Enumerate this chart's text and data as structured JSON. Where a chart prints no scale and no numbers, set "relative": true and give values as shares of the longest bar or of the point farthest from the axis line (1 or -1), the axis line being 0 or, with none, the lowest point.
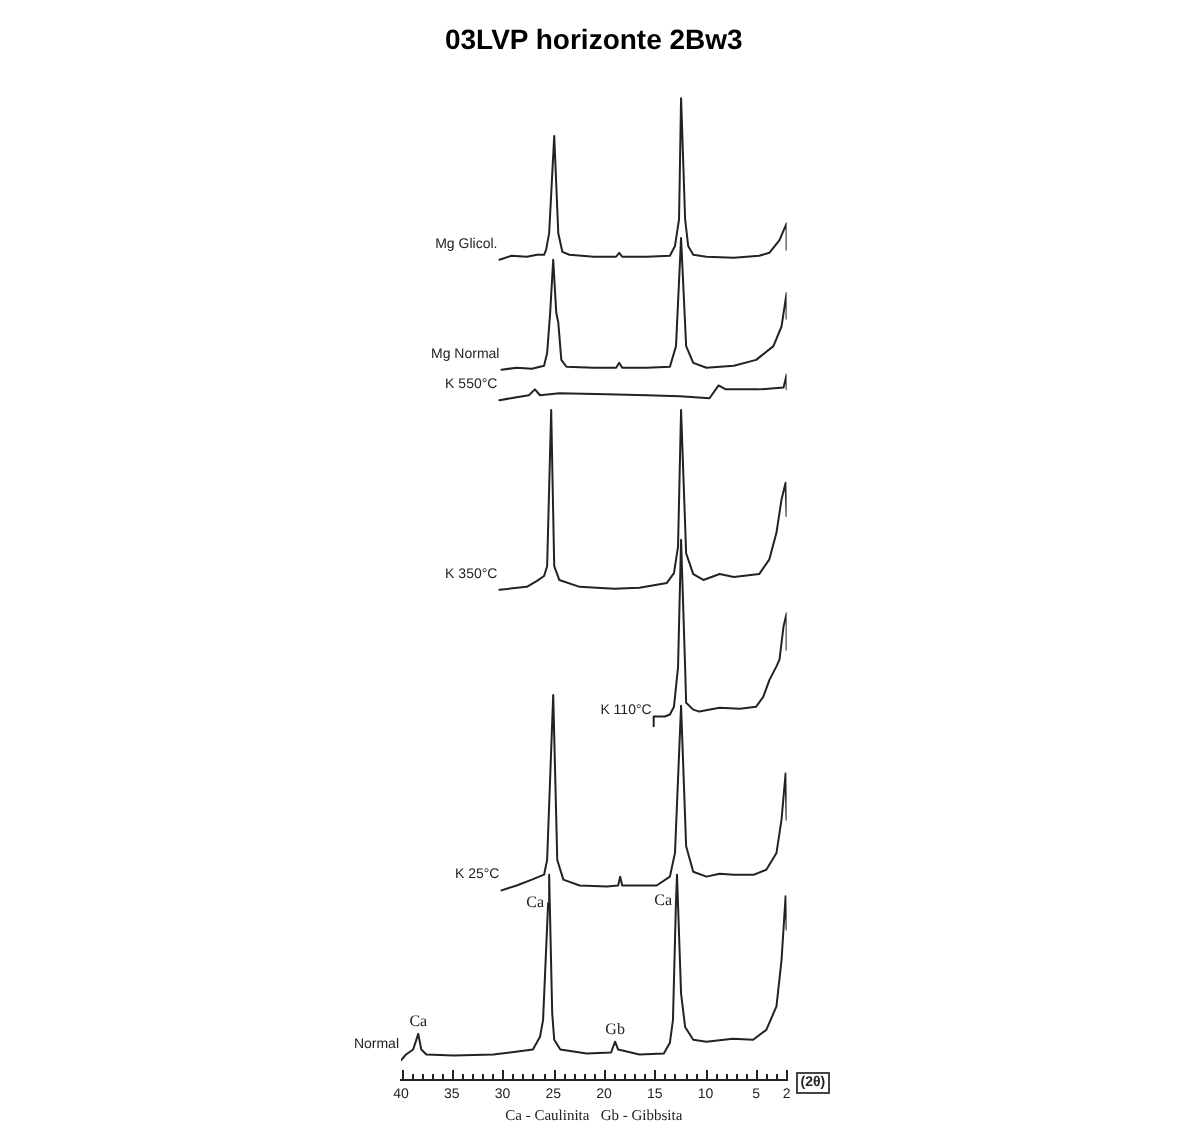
{
  "chart_data": {
    "type": "line",
    "title": "03LVP horizonte 2Bw3",
    "xlabel": "(2θ)",
    "relative": true,
    "marker": "none",
    "xlim": [
      40,
      2
    ],
    "xticks": [
      40,
      {
        "value": 39,
        "label": null
      },
      {
        "value": 38,
        "label": null
      },
      {
        "value": 37,
        "label": null
      },
      {
        "value": 36,
        "label": null
      },
      35,
      {
        "value": 34,
        "label": null
      },
      {
        "value": 33,
        "label": null
      },
      {
        "value": 32,
        "label": null
      },
      {
        "value": 31,
        "label": null
      },
      30,
      {
        "value": 29,
        "label": null
      },
      {
        "value": 28,
        "label": null
      },
      {
        "value": 27,
        "label": null
      },
      {
        "value": 26,
        "label": null
      },
      25,
      {
        "value": 24,
        "label": null
      },
      {
        "value": 23,
        "label": null
      },
      {
        "value": 22,
        "label": null
      },
      {
        "value": 21,
        "label": null
      },
      20,
      {
        "value": 19,
        "label": null
      },
      {
        "value": 18,
        "label": null
      },
      {
        "value": 17,
        "label": null
      },
      {
        "value": 16,
        "label": null
      },
      15,
      {
        "value": 14,
        "label": null
      },
      {
        "value": 13,
        "label": null
      },
      {
        "value": 12,
        "label": null
      },
      {
        "value": 11,
        "label": null
      },
      10,
      {
        "value": 9,
        "label": null
      },
      {
        "value": 8,
        "label": null
      },
      {
        "value": 7,
        "label": null
      },
      {
        "value": 6,
        "label": null
      },
      5,
      {
        "value": 4,
        "label": null
      },
      {
        "value": 3,
        "label": null
      },
      2
    ],
    "series": [
      {
        "name": "Mg Glicol.",
        "color": "#222222",
        "x": [
          30.3,
          29.1,
          27.6,
          26.6,
          25.9,
          25.7,
          25.4,
          24.9,
          24.5,
          24.1,
          23.4,
          21.0,
          18.8,
          18.5,
          18.2,
          15.8,
          13.5,
          13.0,
          12.6,
          12.4,
          12.0,
          11.7,
          11.2,
          9.9,
          7.2,
          4.7,
          3.7,
          2.7,
          2.0,
          2.0
        ],
        "values": [
          0.835,
          0.839,
          0.838,
          0.84,
          0.84,
          0.845,
          0.862,
          0.961,
          0.862,
          0.843,
          0.84,
          0.838,
          0.838,
          0.842,
          0.838,
          0.838,
          0.839,
          0.849,
          0.876,
          1.0,
          0.876,
          0.849,
          0.84,
          0.838,
          0.837,
          0.839,
          0.842,
          0.855,
          0.872,
          0.845
        ]
      },
      {
        "name": "Mg Normal",
        "color": "#222222",
        "x": [
          30.1,
          28.6,
          27.1,
          25.9,
          25.6,
          25.3,
          25.0,
          24.7,
          24.5,
          24.2,
          23.7,
          21.0,
          18.8,
          18.5,
          18.2,
          15.8,
          13.5,
          12.9,
          12.4,
          11.9,
          11.2,
          9.9,
          7.2,
          5.0,
          3.3,
          2.5,
          2.0,
          2.0
        ],
        "values": [
          0.723,
          0.725,
          0.724,
          0.727,
          0.74,
          0.781,
          0.835,
          0.781,
          0.771,
          0.733,
          0.726,
          0.725,
          0.725,
          0.73,
          0.725,
          0.725,
          0.726,
          0.747,
          0.857,
          0.747,
          0.73,
          0.725,
          0.727,
          0.733,
          0.747,
          0.767,
          0.801,
          0.775
        ]
      },
      {
        "name": "K 550°C",
        "color": "#222222",
        "x": [
          30.3,
          28.6,
          27.4,
          26.8,
          26.3,
          24.4,
          19.7,
          15.8,
          12.5,
          9.6,
          8.7,
          8.0,
          4.7,
          2.3,
          2.0,
          2.0
        ],
        "values": [
          0.692,
          0.695,
          0.697,
          0.703,
          0.697,
          0.699,
          0.698,
          0.697,
          0.696,
          0.694,
          0.707,
          0.703,
          0.703,
          0.705,
          0.718,
          0.703
        ]
      },
      {
        "name": "K 350°C",
        "color": "#222222",
        "x": [
          30.3,
          27.6,
          26.6,
          25.9,
          25.6,
          25.2,
          24.9,
          24.4,
          22.4,
          19.0,
          16.5,
          13.8,
          13.1,
          12.7,
          12.4,
          11.9,
          11.2,
          10.2,
          8.6,
          7.2,
          4.7,
          3.7,
          3.0,
          2.5,
          2.1,
          2.0
        ],
        "values": [
          0.499,
          0.502,
          0.508,
          0.513,
          0.523,
          0.682,
          0.523,
          0.509,
          0.502,
          0.5,
          0.501,
          0.506,
          0.516,
          0.543,
          0.682,
          0.536,
          0.515,
          0.509,
          0.515,
          0.512,
          0.515,
          0.53,
          0.557,
          0.591,
          0.608,
          0.574
        ]
      },
      {
        "name": "K 110°C",
        "color": "#222222",
        "x": [
          15.1,
          15.1,
          14.0,
          13.5,
          13.1,
          12.7,
          12.4,
          12.0,
          11.9,
          11.2,
          10.6,
          8.6,
          6.6,
          5.0,
          4.3,
          3.7,
          3.0,
          2.7,
          2.3,
          2.0,
          2.0
        ],
        "values": [
          0.36,
          0.37,
          0.37,
          0.372,
          0.38,
          0.42,
          0.55,
          0.42,
          0.384,
          0.377,
          0.375,
          0.379,
          0.378,
          0.38,
          0.39,
          0.407,
          0.421,
          0.428,
          0.462,
          0.475,
          0.438
        ]
      },
      {
        "name": "K 25°C",
        "color": "#222222",
        "x": [
          30.1,
          28.6,
          27.1,
          25.9,
          25.6,
          25.0,
          24.6,
          24.0,
          22.4,
          19.7,
          18.6,
          18.4,
          18.2,
          14.8,
          13.5,
          13.0,
          12.4,
          11.9,
          11.2,
          9.9,
          8.6,
          7.2,
          5.2,
          4.0,
          3.0,
          2.5,
          2.1,
          2.0
        ],
        "values": [
          0.193,
          0.198,
          0.204,
          0.209,
          0.224,
          0.392,
          0.224,
          0.204,
          0.198,
          0.197,
          0.198,
          0.207,
          0.198,
          0.198,
          0.207,
          0.231,
          0.381,
          0.238,
          0.212,
          0.207,
          0.21,
          0.209,
          0.209,
          0.214,
          0.231,
          0.265,
          0.312,
          0.265
        ]
      },
      {
        "name": "Normal",
        "color": "#222222",
        "x": [
          40.0,
          39.5,
          38.8,
          38.3,
          38.0,
          37.5,
          34.8,
          30.9,
          27.0,
          26.3,
          26.0,
          25.5,
          25.4,
          25.1,
          24.9,
          24.3,
          21.7,
          19.3,
          18.9,
          18.6,
          16.5,
          14.1,
          13.5,
          13.2,
          12.9,
          12.8,
          12.4,
          12.0,
          11.2,
          9.9,
          7.3,
          5.3,
          4.0,
          3.0,
          2.5,
          2.1,
          2.0
        ],
        "values": [
          0.02,
          0.026,
          0.031,
          0.047,
          0.031,
          0.026,
          0.025,
          0.026,
          0.031,
          0.044,
          0.061,
          0.18,
          0.209,
          0.068,
          0.041,
          0.031,
          0.027,
          0.028,
          0.039,
          0.031,
          0.026,
          0.027,
          0.038,
          0.061,
          0.182,
          0.209,
          0.088,
          0.054,
          0.041,
          0.039,
          0.042,
          0.041,
          0.051,
          0.075,
          0.122,
          0.187,
          0.153
        ]
      }
    ],
    "annotations": [
      {
        "text": "Ca",
        "x": 38.3,
        "y": 0.047
      },
      {
        "text": "Ca",
        "x": 25.5,
        "y": 0.18
      },
      {
        "text": "Gb",
        "x": 18.9,
        "y": 0.039
      },
      {
        "text": "Ca",
        "x": 12.9,
        "y": 0.182
      },
      "Ca - Caulinita   Gb - Gibbsita"
    ]
  }
}
